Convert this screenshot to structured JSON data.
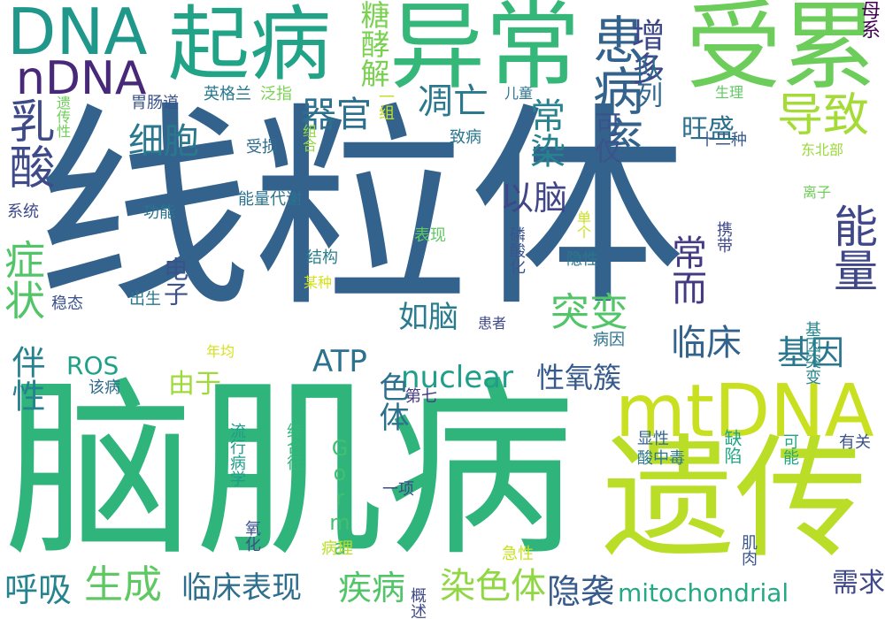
{
  "word_cloud": {
    "words": [
      {
        "text": "线粒体",
        "color": "#33638d"
      },
      {
        "text": "脑肌病",
        "color": "#2fb47c"
      },
      {
        "text": "遗传",
        "color": "#bade28"
      },
      {
        "text": "异常",
        "color": "#35b779"
      },
      {
        "text": "受累",
        "color": "#6ccd5a"
      },
      {
        "text": "起病",
        "color": "#20a386"
      },
      {
        "text": "DNA",
        "color": "#1f988b"
      },
      {
        "text": "mtDNA",
        "color": "#c8e020"
      },
      {
        "text": "nDNA",
        "color": "#482878"
      },
      {
        "text": "患病率",
        "color": "#33638d"
      },
      {
        "text": "导致",
        "color": "#a5db36"
      },
      {
        "text": "乳酸",
        "color": "#3e4a89"
      },
      {
        "text": "细胞",
        "color": "#2a788e"
      },
      {
        "text": "器官",
        "color": "#2d708e"
      },
      {
        "text": "凋亡",
        "color": "#2a788e"
      },
      {
        "text": "常染",
        "color": "#26828e"
      },
      {
        "text": "增多",
        "color": "#3e4989"
      },
      {
        "text": "糖酵解",
        "color": "#7ad151"
      },
      {
        "text": "队列",
        "color": "#31688e"
      },
      {
        "text": "旺盛",
        "color": "#2d708e"
      },
      {
        "text": "可仅",
        "color": "#3b528b"
      },
      {
        "text": "以脑",
        "color": "#404688"
      },
      {
        "text": "能量",
        "color": "#3f4788"
      },
      {
        "text": "常而",
        "color": "#443a83"
      },
      {
        "text": "症状",
        "color": "#52c569"
      },
      {
        "text": "伴性",
        "color": "#26828e"
      },
      {
        "text": "突变",
        "color": "#52c569"
      },
      {
        "text": "临床",
        "color": "#33638d"
      },
      {
        "text": "基因",
        "color": "#2a788e"
      },
      {
        "text": "如脑",
        "color": "#287c8e"
      },
      {
        "text": "ATP",
        "color": "#2c728e"
      },
      {
        "text": "nuclear",
        "color": "#1f9e89"
      },
      {
        "text": "性氧簇",
        "color": "#375a8c"
      },
      {
        "text": "ROS",
        "color": "#1fa187"
      },
      {
        "text": "由于",
        "color": "#a0da39"
      },
      {
        "text": "色体",
        "color": "#2d708e"
      },
      {
        "text": "电子",
        "color": "#3b528b"
      },
      {
        "text": "呼吸",
        "color": "#25848e"
      },
      {
        "text": "生成",
        "color": "#5ec962"
      },
      {
        "text": "临床表现",
        "color": "#2e6f8e"
      },
      {
        "text": "疾病",
        "color": "#52c569"
      },
      {
        "text": "染色体",
        "color": "#90d743"
      },
      {
        "text": "隐袭",
        "color": "#375b8d"
      },
      {
        "text": "mitochondrial",
        "color": "#23a983"
      },
      {
        "text": "需求",
        "color": "#3f4889"
      },
      {
        "text": "Gorma",
        "color": "#44bf70"
      },
      {
        "text": "胃肠道",
        "color": "#3b528b"
      },
      {
        "text": "英格兰",
        "color": "#2a788e"
      },
      {
        "text": "泛指",
        "color": "#7ad151"
      },
      {
        "text": "一组",
        "color": "#c2df23"
      },
      {
        "text": "儿童",
        "color": "#2c728e"
      },
      {
        "text": "生理",
        "color": "#5ec962"
      },
      {
        "text": "母系",
        "color": "#440154"
      },
      {
        "text": "遗传性",
        "color": "#6ece58"
      },
      {
        "text": "组合",
        "color": "#93d741"
      },
      {
        "text": "致病",
        "color": "#2a768e"
      },
      {
        "text": "受损",
        "color": "#2f6c8e"
      },
      {
        "text": "十二种",
        "color": "#375b8d"
      },
      {
        "text": "东北部",
        "color": "#9bd93c"
      },
      {
        "text": "系统",
        "color": "#3e4989"
      },
      {
        "text": "功能",
        "color": "#2b748e"
      },
      {
        "text": "能量代谢",
        "color": "#2c728e"
      },
      {
        "text": "离子",
        "color": "#6ece58"
      },
      {
        "text": "携带",
        "color": "#3e4989"
      },
      {
        "text": "单个",
        "color": "#cae11f"
      },
      {
        "text": "表现",
        "color": "#5ec962"
      },
      {
        "text": "隐性",
        "color": "#2a768e"
      },
      {
        "text": "磷酸化",
        "color": "#3a548c"
      },
      {
        "text": "结构",
        "color": "#287d8e"
      },
      {
        "text": "某种",
        "color": "#d5e21a"
      },
      {
        "text": "出生",
        "color": "#2a768e"
      },
      {
        "text": "稳态",
        "color": "#3b528b"
      },
      {
        "text": "患者",
        "color": "#3f4788"
      },
      {
        "text": "病因",
        "color": "#2c728e"
      },
      {
        "text": "年均",
        "color": "#d5e21a"
      },
      {
        "text": "该病",
        "color": "#2f6b8e"
      },
      {
        "text": "第七",
        "color": "#443983"
      },
      {
        "text": "基因突变",
        "color": "#25858e"
      },
      {
        "text": "综合征",
        "color": "#35b779"
      },
      {
        "text": "流行病学",
        "color": "#1e9c89"
      },
      {
        "text": "显性",
        "color": "#32658e"
      },
      {
        "text": "酸中毒",
        "color": "#2a788e"
      },
      {
        "text": "缺陷",
        "color": "#22a785"
      },
      {
        "text": "可能",
        "color": "#22a785"
      },
      {
        "text": "有关",
        "color": "#3b528b"
      },
      {
        "text": "一项",
        "color": "#3e4a89"
      },
      {
        "text": "氧化",
        "color": "#3b528b"
      },
      {
        "text": "病理",
        "color": "#b8de29"
      },
      {
        "text": "急性",
        "color": "#c8e020"
      },
      {
        "text": "肌肉",
        "color": "#39558c"
      },
      {
        "text": "概述",
        "color": "#3e4989"
      }
    ]
  }
}
